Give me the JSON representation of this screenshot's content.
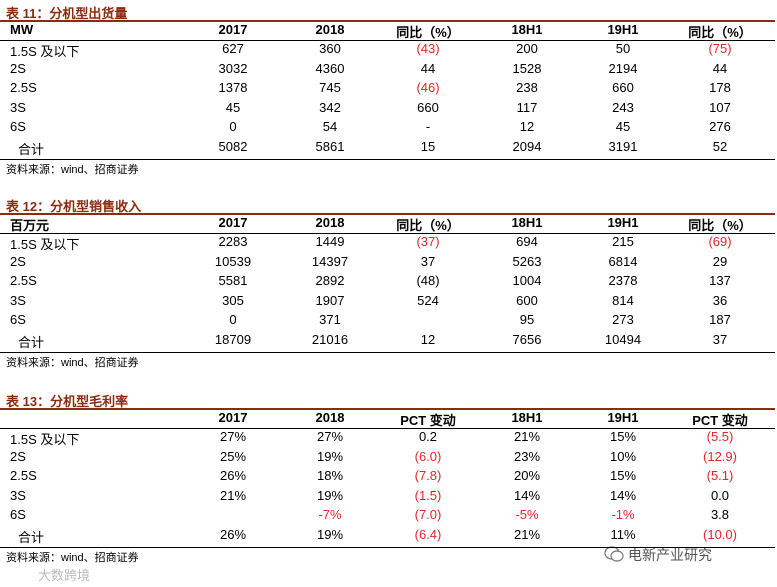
{
  "tables": [
    {
      "title": "表 11：分机型出货量",
      "header": [
        "MW",
        "2017",
        "2018",
        "同比（%）",
        "18H1",
        "19H1",
        "同比（%）"
      ],
      "rows": [
        [
          "1.5S 及以下",
          "627",
          "360",
          "(43)",
          "200",
          "50",
          "(75)"
        ],
        [
          "2S",
          "3032",
          "4360",
          "44",
          "1528",
          "2194",
          "44"
        ],
        [
          "2.5S",
          "1378",
          "745",
          "(46)",
          "238",
          "660",
          "178"
        ],
        [
          "3S",
          "45",
          "342",
          "660",
          "117",
          "243",
          "107"
        ],
        [
          "6S",
          "0",
          "54",
          "-",
          "12",
          "45",
          "276"
        ],
        [
          "合计",
          "5082",
          "5861",
          "15",
          "2094",
          "3191",
          "52"
        ]
      ],
      "red_cells": [
        [
          0,
          3
        ],
        [
          0,
          6
        ],
        [
          2,
          3
        ]
      ],
      "source": "资料来源：wind、招商证券"
    },
    {
      "title": "表 12：分机型销售收入",
      "header": [
        "百万元",
        "2017",
        "2018",
        "同比（%）",
        "18H1",
        "19H1",
        "同比（%）"
      ],
      "rows": [
        [
          "1.5S 及以下",
          "2283",
          "1449",
          "(37)",
          "694",
          "215",
          "(69)"
        ],
        [
          "2S",
          "10539",
          "14397",
          "37",
          "5263",
          "6814",
          "29"
        ],
        [
          "2.5S",
          "5581",
          "2892",
          "(48)",
          "1004",
          "2378",
          "137"
        ],
        [
          "3S",
          "305",
          "1907",
          "524",
          "600",
          "814",
          "36"
        ],
        [
          "6S",
          "0",
          "371",
          null,
          "95",
          "273",
          "187"
        ],
        [
          "合计",
          "18709",
          "21016",
          "12",
          "7656",
          "10494",
          "37"
        ]
      ],
      "red_cells": [
        [
          0,
          3
        ],
        [
          0,
          6
        ]
      ],
      "source": "资料来源：wind、招商证券"
    },
    {
      "title": "表 13：分机型毛利率",
      "header": [
        null,
        "2017",
        "2018",
        "PCT 变动",
        "18H1",
        "19H1",
        "PCT 变动"
      ],
      "rows": [
        [
          "1.5S 及以下",
          "27%",
          "27%",
          "0.2",
          "21%",
          "15%",
          "(5.5)"
        ],
        [
          "2S",
          "25%",
          "19%",
          "(6.0)",
          "23%",
          "10%",
          "(12.9)"
        ],
        [
          "2.5S",
          "26%",
          "18%",
          "(7.8)",
          "20%",
          "15%",
          "(5.1)"
        ],
        [
          "3S",
          "21%",
          "19%",
          "(1.5)",
          "14%",
          "14%",
          "0.0"
        ],
        [
          "6S",
          null,
          "-7%",
          "(7.0)",
          "-5%",
          "-1%",
          "3.8"
        ],
        [
          "合计",
          "26%",
          "19%",
          "(6.4)",
          "21%",
          "11%",
          "(10.0)"
        ]
      ],
      "red_cells": [
        [
          0,
          6
        ],
        [
          1,
          3
        ],
        [
          1,
          6
        ],
        [
          2,
          3
        ],
        [
          2,
          6
        ],
        [
          3,
          3
        ],
        [
          4,
          2
        ],
        [
          4,
          3
        ],
        [
          4,
          4
        ],
        [
          4,
          5
        ],
        [
          5,
          3
        ],
        [
          5,
          6
        ]
      ],
      "source": "资料来源：wind、招商证券"
    }
  ],
  "watermark": {
    "account": "电新产业研究",
    "corner": "大数跨境"
  }
}
